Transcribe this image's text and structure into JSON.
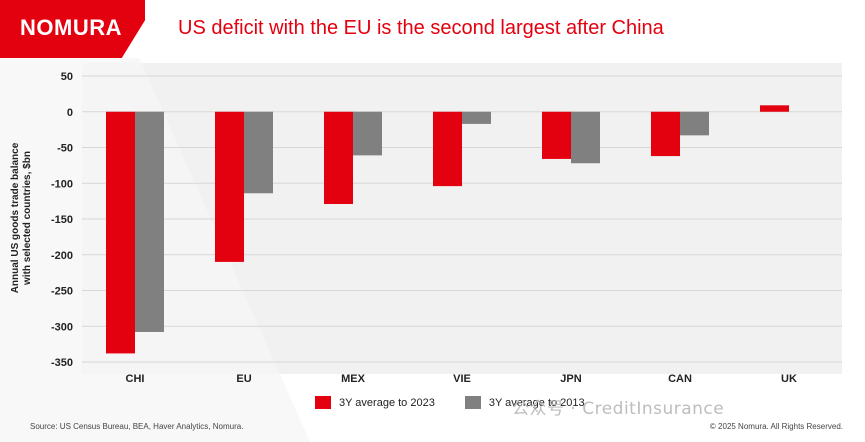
{
  "header": {
    "logo": "NOMURA",
    "title": "US deficit with the EU is the second largest after China"
  },
  "colors": {
    "brand_red": "#e3000f",
    "series_gray": "#808080"
  },
  "chart_data": {
    "type": "bar",
    "categories": [
      "CHI",
      "EU",
      "MEX",
      "VIE",
      "JPN",
      "CAN",
      "UK"
    ],
    "series": [
      {
        "name": "3Y average to 2023",
        "color": "#e3000f",
        "values": [
          -338,
          -210,
          -129,
          -104,
          -66,
          -62,
          9
        ]
      },
      {
        "name": "3Y average to 2013",
        "color": "#808080",
        "values": [
          -308,
          -114,
          -61,
          -17,
          -72,
          -33,
          0
        ]
      }
    ],
    "ylabel_lines": [
      "Annual US goods trade balance",
      "with selected countries, $bn"
    ],
    "ylim": [
      -350,
      50
    ],
    "yticks": [
      50,
      0,
      -50,
      -100,
      -150,
      -200,
      -250,
      -300,
      -350
    ],
    "grid": true,
    "legend_position": "bottom"
  },
  "footer": {
    "source": "Source: US Census Bureau, BEA, Haver Analytics, Nomura.",
    "copyright": "© 2025 Nomura. All Rights Reserved."
  },
  "watermark": "公众号 · CreditInsurance"
}
